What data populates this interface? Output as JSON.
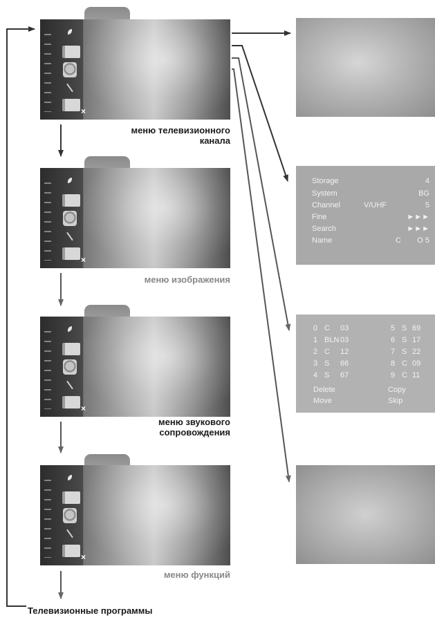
{
  "menus": [
    {
      "caption": "меню телевизионного\nканала",
      "tone": "dark"
    },
    {
      "caption": "меню изображения",
      "tone": "gray"
    },
    {
      "caption": "меню звукового\nсопровождения",
      "tone": "dark"
    },
    {
      "caption": "меню функций",
      "tone": "gray"
    }
  ],
  "tuning_menu": {
    "rows": [
      {
        "label": "Storage",
        "mid": "",
        "value": "4"
      },
      {
        "label": "System",
        "mid": "",
        "value": "BG"
      },
      {
        "label": "Channel",
        "mid": "V/UHF",
        "value": "5"
      },
      {
        "label": "Fine",
        "mid": "",
        "value": "►►►"
      },
      {
        "label": "Search",
        "mid": "",
        "value": "►►►"
      },
      {
        "label": "Name",
        "mid": "C",
        "value": "O 5"
      }
    ]
  },
  "program_table": {
    "left": [
      {
        "num": "0",
        "band": "C",
        "ch": "03"
      },
      {
        "num": "1",
        "band": "BLN",
        "ch": "03"
      },
      {
        "num": "2",
        "band": "C",
        "ch": "12"
      },
      {
        "num": "3",
        "band": "S",
        "ch": "66"
      },
      {
        "num": "4",
        "band": "S",
        "ch": "67"
      }
    ],
    "right": [
      {
        "num": "5",
        "band": "S",
        "ch": "69"
      },
      {
        "num": "6",
        "band": "S",
        "ch": "17"
      },
      {
        "num": "7",
        "band": "S",
        "ch": "22"
      },
      {
        "num": "8",
        "band": "C",
        "ch": "09"
      },
      {
        "num": "9",
        "band": "C",
        "ch": "11"
      }
    ],
    "commands": {
      "delete": "Delete",
      "copy": "Copy",
      "move": "Move",
      "skip": "Skip"
    }
  },
  "bottom_label": "Телевизионные программы"
}
